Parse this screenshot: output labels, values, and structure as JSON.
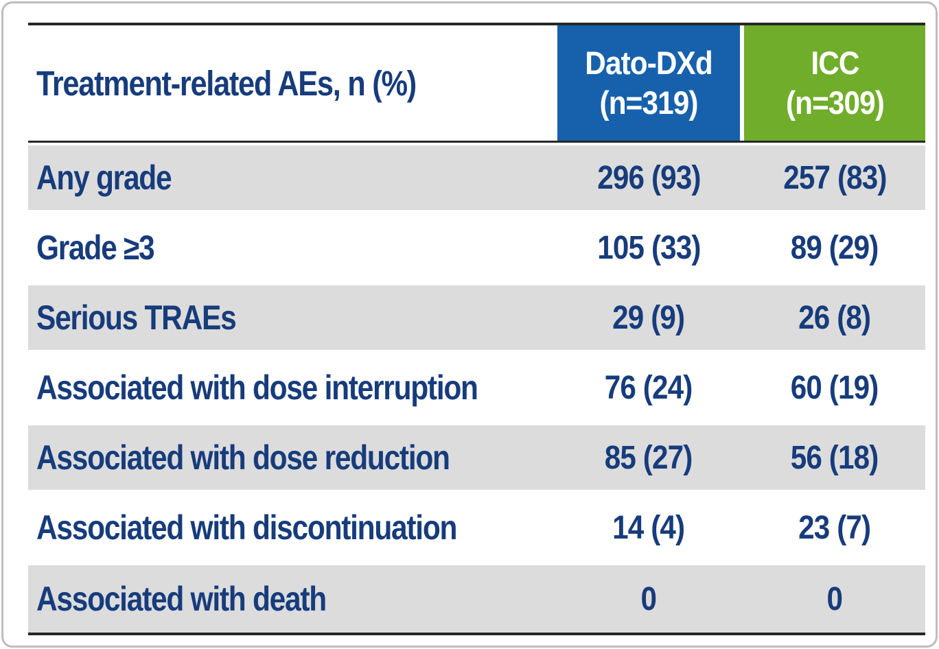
{
  "table": {
    "header": {
      "row_label": "Treatment-related AEs, n (%)",
      "dato_line1": "Dato-DXd",
      "dato_line2": "(n=319)",
      "icc_line1": "ICC",
      "icc_line2": "(n=309)"
    },
    "rows": [
      {
        "label": "Any grade",
        "dato": "296 (93)",
        "icc": "257 (83)"
      },
      {
        "label": "Grade ≥3",
        "dato": "105 (33)",
        "icc": "89 (29)"
      },
      {
        "label": "Serious TRAEs",
        "dato": "29 (9)",
        "icc": "26 (8)"
      },
      {
        "label": "Associated with dose interruption",
        "dato": "76 (24)",
        "icc": "60 (19)"
      },
      {
        "label": "Associated with dose reduction",
        "dato": "85 (27)",
        "icc": "56 (18)"
      },
      {
        "label": "Associated with discontinuation",
        "dato": "14 (4)",
        "icc": "23 (7)"
      },
      {
        "label": "Associated with death",
        "dato": "0",
        "icc": "0"
      }
    ],
    "colors": {
      "dato_header_bg": "#1761ac",
      "icc_header_bg": "#70ad2b",
      "navy_text": "#173c7c",
      "gray_row_bg": "#dcdcdc",
      "border_dark": "#262626"
    }
  },
  "chart_data": {
    "type": "table",
    "title": "Treatment-related AEs, n (%)",
    "columns": [
      "Treatment-related AEs, n (%)",
      "Dato-DXd (n=319)",
      "ICC (n=309)"
    ],
    "rows": [
      [
        "Any grade",
        "296 (93)",
        "257 (83)"
      ],
      [
        "Grade ≥3",
        "105 (33)",
        "89 (29)"
      ],
      [
        "Serious TRAEs",
        "29 (9)",
        "26 (8)"
      ],
      [
        "Associated with dose interruption",
        "76 (24)",
        "60 (19)"
      ],
      [
        "Associated with dose reduction",
        "85 (27)",
        "56 (18)"
      ],
      [
        "Associated with discontinuation",
        "14 (4)",
        "23 (7)"
      ],
      [
        "Associated with death",
        "0",
        "0"
      ]
    ]
  }
}
